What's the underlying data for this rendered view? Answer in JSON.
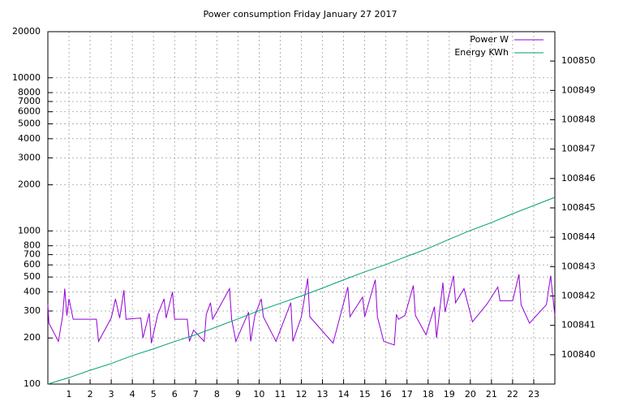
{
  "chart_data": {
    "type": "line",
    "title": "Power consumption Friday January 27 2017",
    "xlim": [
      0,
      24
    ],
    "xticks": [
      1,
      2,
      3,
      4,
      5,
      6,
      7,
      8,
      9,
      10,
      11,
      12,
      13,
      14,
      15,
      16,
      17,
      18,
      19,
      20,
      21,
      22,
      23
    ],
    "ylim": [
      100,
      20000
    ],
    "ylog": true,
    "yticks": [
      100,
      200,
      300,
      400,
      500,
      600,
      700,
      800,
      1000,
      2000,
      3000,
      4000,
      5000,
      6000,
      7000,
      8000,
      10000,
      20000
    ],
    "y2lim": [
      100839,
      100851
    ],
    "y2ticks": [
      100840,
      100841,
      100842,
      100843,
      100844,
      100845,
      100846,
      100847,
      100848,
      100849,
      100850
    ],
    "grid": true,
    "legend": "top-right",
    "series": [
      {
        "name": "Power W",
        "color": "#9400d3",
        "x": [
          0,
          0.05,
          0.5,
          0.7,
          0.8,
          0.9,
          1.0,
          1.2,
          2.3,
          2.4,
          3.0,
          3.2,
          3.4,
          3.6,
          3.7,
          4.4,
          4.5,
          4.8,
          4.9,
          5.2,
          5.5,
          5.6,
          5.9,
          6.0,
          6.6,
          6.7,
          6.9,
          7.4,
          7.5,
          7.7,
          7.8,
          8.6,
          8.7,
          8.9,
          9.5,
          9.6,
          9.8,
          10.1,
          10.2,
          10.8,
          11.5,
          11.6,
          12.0,
          12.3,
          12.4,
          13.5,
          14.2,
          14.3,
          14.9,
          15.0,
          15.5,
          15.6,
          15.9,
          16.4,
          16.5,
          16.6,
          16.9,
          17.3,
          17.4,
          17.9,
          18.3,
          18.4,
          18.7,
          18.8,
          19.2,
          19.3,
          19.7,
          20.1,
          20.8,
          21.3,
          21.4,
          22.0,
          22.3,
          22.4,
          22.8,
          23.6,
          23.8,
          24
        ],
        "values": [
          330,
          250,
          190,
          280,
          420,
          280,
          360,
          265,
          265,
          190,
          270,
          360,
          270,
          410,
          265,
          270,
          200,
          290,
          185,
          285,
          360,
          270,
          400,
          265,
          265,
          190,
          225,
          190,
          285,
          340,
          265,
          420,
          265,
          190,
          295,
          190,
          280,
          360,
          275,
          190,
          340,
          190,
          275,
          490,
          275,
          185,
          430,
          275,
          370,
          275,
          480,
          275,
          190,
          180,
          285,
          265,
          280,
          440,
          280,
          210,
          320,
          200,
          460,
          295,
          510,
          340,
          420,
          255,
          335,
          430,
          350,
          350,
          520,
          330,
          250,
          330,
          510,
          280
        ]
      },
      {
        "name": "Energy KWh",
        "color": "#009e73",
        "axis": "y2",
        "x": [
          0,
          1,
          2,
          3,
          4,
          5,
          6,
          7,
          8,
          9,
          10,
          11,
          12,
          13,
          14,
          15,
          16,
          17,
          18,
          19,
          20,
          21,
          22,
          23,
          24
        ],
        "values": [
          100839.0,
          100839.22,
          100839.47,
          100839.7,
          100839.97,
          100840.2,
          100840.45,
          100840.68,
          100840.95,
          100841.22,
          100841.5,
          100841.75,
          100842.0,
          100842.27,
          100842.55,
          100842.82,
          100843.07,
          100843.35,
          100843.62,
          100843.93,
          100844.23,
          100844.5,
          100844.8,
          100845.08,
          100845.36
        ]
      }
    ]
  }
}
